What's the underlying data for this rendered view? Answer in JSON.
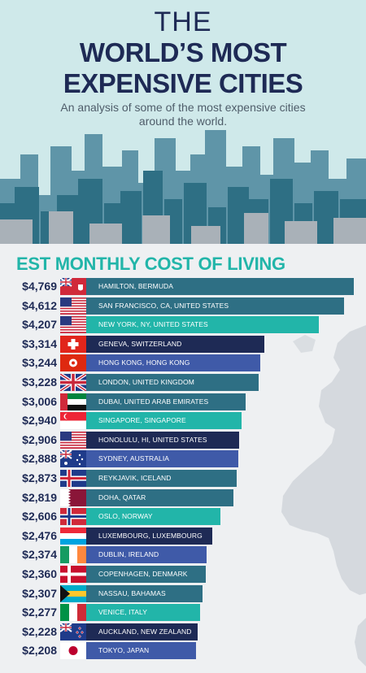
{
  "header": {
    "the": "THE",
    "title_line1": "WORLD’S MOST",
    "title_line2": "EXPENSIVE CITIES",
    "subtitle": "An analysis of some of the most expensive cities around the world."
  },
  "section_title": "EST MONTHLY COST OF LIVING",
  "colors": {
    "navy": "#1e2a55",
    "teal_dark": "#2e6f84",
    "teal": "#22b5a9",
    "indigo": "#3f5aa8",
    "header_bg": "#cfe9ea"
  },
  "rows": [
    {
      "cost": "$4,769",
      "city": "HAMILTON, BERMUDA",
      "flag": "bermuda",
      "color": "#2e6f84"
    },
    {
      "cost": "$4,612",
      "city": "SAN FRANCISCO, CA, UNITED STATES",
      "flag": "usa",
      "color": "#2e6f84"
    },
    {
      "cost": "$4,207",
      "city": "NEW YORK, NY, UNITED STATES",
      "flag": "usa",
      "color": "#22b5a9"
    },
    {
      "cost": "$3,314",
      "city": "GENEVA, SWITZERLAND",
      "flag": "switzerland",
      "color": "#1e2a55"
    },
    {
      "cost": "$3,244",
      "city": "HONG KONG, HONG KONG",
      "flag": "hongkong",
      "color": "#3f5aa8"
    },
    {
      "cost": "$3,228",
      "city": "LONDON, UNITED KINGDOM",
      "flag": "uk",
      "color": "#2e6f84"
    },
    {
      "cost": "$3,006",
      "city": "DUBAI, UNITED ARAB EMIRATES",
      "flag": "uae",
      "color": "#2e6f84"
    },
    {
      "cost": "$2,940",
      "city": "SINGAPORE, SINGAPORE",
      "flag": "singapore",
      "color": "#22b5a9"
    },
    {
      "cost": "$2,906",
      "city": "HONOLULU, HI, UNITED STATES",
      "flag": "usa",
      "color": "#1e2a55"
    },
    {
      "cost": "$2,888",
      "city": "SYDNEY, AUSTRALIA",
      "flag": "australia",
      "color": "#3f5aa8"
    },
    {
      "cost": "$2,873",
      "city": "REYKJAVIK, ICELAND",
      "flag": "iceland",
      "color": "#2e6f84"
    },
    {
      "cost": "$2,819",
      "city": "DOHA, QATAR",
      "flag": "qatar",
      "color": "#2e6f84"
    },
    {
      "cost": "$2,606",
      "city": "OSLO, NORWAY",
      "flag": "norway",
      "color": "#22b5a9"
    },
    {
      "cost": "$2,476",
      "city": "LUXEMBOURG, LUXEMBOURG",
      "flag": "luxembourg",
      "color": "#1e2a55"
    },
    {
      "cost": "$2,374",
      "city": "DUBLIN, IRELAND",
      "flag": "ireland",
      "color": "#3f5aa8"
    },
    {
      "cost": "$2,360",
      "city": "COPENHAGEN, DENMARK",
      "flag": "denmark",
      "color": "#2e6f84"
    },
    {
      "cost": "$2,307",
      "city": "NASSAU, BAHAMAS",
      "flag": "bahamas",
      "color": "#2e6f84"
    },
    {
      "cost": "$2,277",
      "city": "VENICE, ITALY",
      "flag": "italy",
      "color": "#22b5a9"
    },
    {
      "cost": "$2,228",
      "city": "AUCKLAND, NEW ZEALAND",
      "flag": "newzealand",
      "color": "#1e2a55"
    },
    {
      "cost": "$2,208",
      "city": "TOKYO, JAPAN",
      "flag": "japan",
      "color": "#3f5aa8"
    }
  ],
  "chart_data": {
    "type": "bar",
    "title": "EST MONTHLY COST OF LIVING",
    "categories": [
      "HAMILTON, BERMUDA",
      "SAN FRANCISCO, CA, UNITED STATES",
      "NEW YORK, NY, UNITED STATES",
      "GENEVA, SWITZERLAND",
      "HONG KONG, HONG KONG",
      "LONDON, UNITED KINGDOM",
      "DUBAI, UNITED ARAB EMIRATES",
      "SINGAPORE, SINGAPORE",
      "HONOLULU, HI, UNITED STATES",
      "SYDNEY, AUSTRALIA",
      "REYKJAVIK, ICELAND",
      "DOHA, QATAR",
      "OSLO, NORWAY",
      "LUXEMBOURG, LUXEMBOURG",
      "DUBLIN, IRELAND",
      "COPENHAGEN, DENMARK",
      "NASSAU, BAHAMAS",
      "VENICE, ITALY",
      "AUCKLAND, NEW ZEALAND",
      "TOKYO, JAPAN"
    ],
    "values": [
      4769,
      4612,
      4207,
      3314,
      3244,
      3228,
      3006,
      2940,
      2906,
      2888,
      2873,
      2819,
      2606,
      2476,
      2374,
      2360,
      2307,
      2277,
      2228,
      2208
    ],
    "orientation": "horizontal"
  }
}
